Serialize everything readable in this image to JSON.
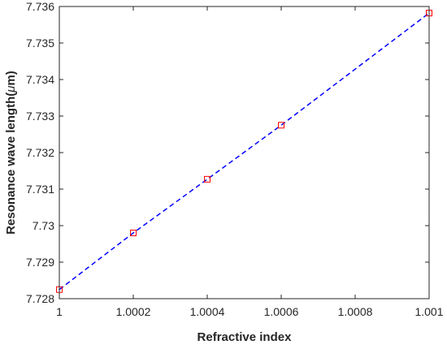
{
  "chart_data": {
    "type": "line",
    "title": "",
    "xlabel": "Refractive index",
    "ylabel": "Resonance wave length(",
    "ylabel_mu": "μ",
    "ylabel_unit": "m)",
    "xlim": [
      1,
      1.001
    ],
    "ylim": [
      7.728,
      7.736
    ],
    "x_ticks": [
      1,
      1.0002,
      1.0004,
      1.0006,
      1.0008,
      1.001
    ],
    "x_tick_labels": [
      "1",
      "1.0002",
      "1.0004",
      "1.0006",
      "1.0008",
      "1.001"
    ],
    "y_ticks": [
      7.728,
      7.729,
      7.73,
      7.731,
      7.732,
      7.733,
      7.734,
      7.735,
      7.736
    ],
    "y_tick_labels": [
      "7.728",
      "7.729",
      "7.73",
      "7.731",
      "7.732",
      "7.733",
      "7.734",
      "7.735",
      "7.736"
    ],
    "grid": false,
    "series": [
      {
        "x": [
          1,
          1.0002,
          1.0004,
          1.0006,
          1.001
        ],
        "y": [
          7.72825,
          7.7298,
          7.73127,
          7.73275,
          7.73582
        ],
        "line_color": "#0000ff",
        "line_style": "dashed",
        "marker": "square",
        "marker_color": "#ff0000"
      }
    ]
  }
}
